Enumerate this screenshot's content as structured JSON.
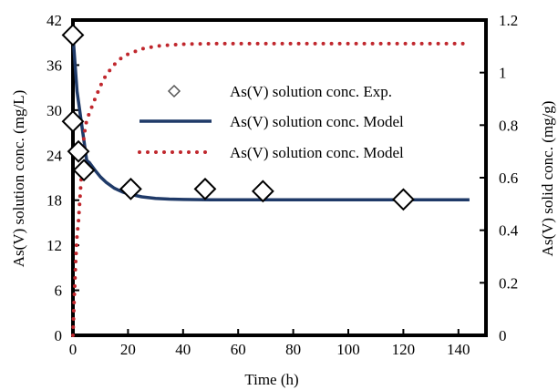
{
  "chart_data": {
    "type": "line",
    "xlabel": "Time (h)",
    "ylabel_left": "As(V) solution conc. (mg/L)",
    "ylabel_right": "As(V) solid conc. (mg/g)",
    "xlim": [
      0,
      150
    ],
    "ylim_left": [
      0,
      42
    ],
    "ylim_right": [
      0,
      1.2
    ],
    "xticks": [
      "0",
      "20",
      "40",
      "60",
      "80",
      "100",
      "120",
      "140"
    ],
    "yticks_left": [
      "0",
      "6",
      "12",
      "18",
      "24",
      "30",
      "36",
      "42"
    ],
    "yticks_right": [
      "0",
      "0.2",
      "0.4",
      "0.6",
      "0.8",
      "1",
      "1.2"
    ],
    "grid": false,
    "legend_position": "center-right",
    "series": [
      {
        "name": "As(V) solution conc. Exp.",
        "kind": "scatter",
        "axis": "left",
        "marker": "diamond",
        "color": "#000000",
        "x": [
          0,
          0,
          2,
          4,
          21,
          48,
          69,
          120
        ],
        "y": [
          40,
          28.5,
          24.5,
          22,
          19.5,
          19.5,
          19.2,
          18.1
        ]
      },
      {
        "name": "As(V) solution conc. Model",
        "kind": "line",
        "axis": "left",
        "color": "#1f3a68",
        "x": [
          0,
          0.5,
          1,
          1.5,
          2,
          5,
          6,
          8,
          10,
          12,
          15,
          18,
          20,
          25,
          30,
          35,
          40,
          50,
          60,
          80,
          100,
          120,
          144
        ],
        "y": [
          40,
          37.5,
          35,
          32.5,
          31.2,
          23.3,
          23,
          22,
          21.1,
          20.4,
          19.6,
          19.1,
          18.85,
          18.45,
          18.25,
          18.15,
          18.1,
          18.05,
          18.05,
          18.05,
          18.05,
          18.05,
          18.05
        ]
      },
      {
        "name": "As(V) solution conc. Model",
        "kind": "line",
        "axis": "right",
        "color": "#c0272d",
        "dash": "dotted",
        "x": [
          0,
          0.5,
          1,
          1.5,
          2,
          4,
          5,
          8,
          10,
          12,
          15,
          18,
          20,
          25,
          30,
          35,
          40,
          50,
          60,
          80,
          100,
          120,
          144
        ],
        "y": [
          0,
          0.15,
          0.28,
          0.38,
          0.43,
          0.76,
          0.82,
          0.9,
          0.95,
          0.99,
          1.03,
          1.06,
          1.07,
          1.09,
          1.1,
          1.105,
          1.108,
          1.11,
          1.11,
          1.11,
          1.11,
          1.11,
          1.11
        ]
      }
    ]
  }
}
